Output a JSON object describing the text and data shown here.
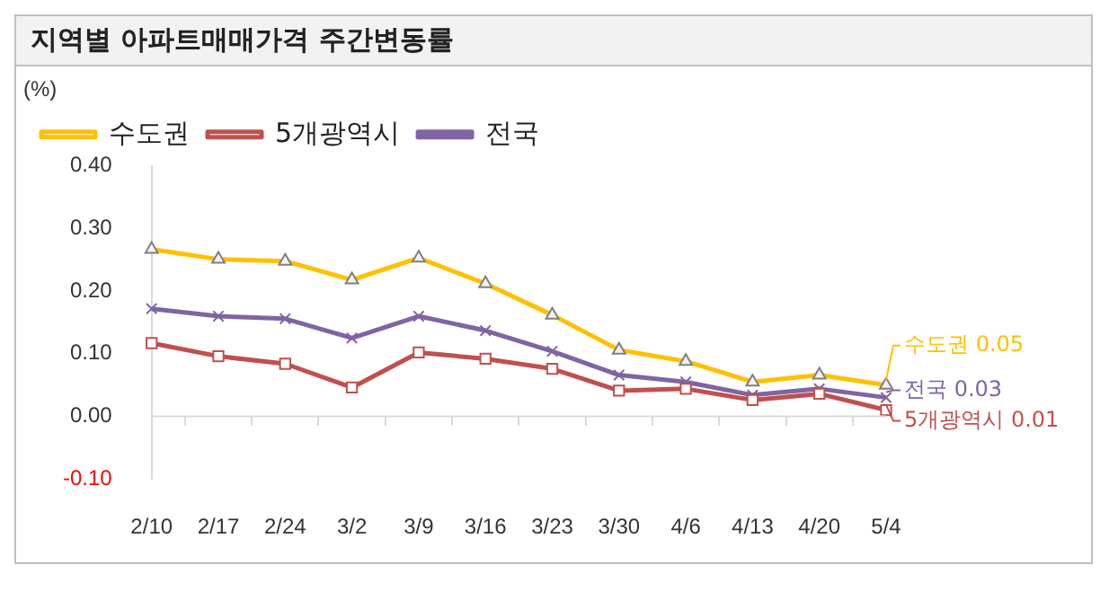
{
  "chart_data": {
    "type": "line",
    "title": "지역별 아파트매매가격 주간변동률",
    "ylabel": "(%)",
    "categories": [
      "2/10",
      "2/17",
      "2/24",
      "3/2",
      "3/9",
      "3/16",
      "3/23",
      "3/30",
      "4/6",
      "4/13",
      "4/20",
      "5/4"
    ],
    "series": [
      {
        "name": "수도권",
        "color": "#ffc000",
        "marker": "triangle",
        "values": [
          0.267,
          0.251,
          0.248,
          0.218,
          0.253,
          0.212,
          0.162,
          0.106,
          0.088,
          0.055,
          0.066,
          0.05
        ]
      },
      {
        "name": "5개광역시",
        "color": "#c0504d",
        "marker": "square",
        "values": [
          0.117,
          0.096,
          0.084,
          0.046,
          0.102,
          0.092,
          0.076,
          0.041,
          0.044,
          0.026,
          0.036,
          0.01
        ]
      },
      {
        "name": "전국",
        "color": "#8064a2",
        "marker": "cross",
        "values": [
          0.172,
          0.16,
          0.156,
          0.125,
          0.16,
          0.137,
          0.104,
          0.066,
          0.055,
          0.034,
          0.044,
          0.03
        ]
      }
    ],
    "ylim": [
      -0.1,
      0.4
    ],
    "yticks": [
      {
        "value": -0.1,
        "label": "-0.10"
      },
      {
        "value": 0,
        "label": "0.00"
      },
      {
        "value": 0.1,
        "label": "0.10"
      },
      {
        "value": 0.2,
        "label": "0.20"
      },
      {
        "value": 0.3,
        "label": "0.30"
      },
      {
        "value": 0.4,
        "label": "0.40"
      }
    ],
    "grid": false,
    "legend": "top",
    "ref_lines": [
      {
        "axis": "y",
        "value": 0,
        "color": "#d9d9d9"
      }
    ],
    "annotations": [
      {
        "text": "수도권 0.05",
        "x": "5/4",
        "y": 0.05
      },
      {
        "text": "5개광역시 0.01",
        "x": "5/4",
        "y": 0.01
      },
      {
        "text": "전국 0.03",
        "x": "5/4",
        "y": 0.03
      }
    ]
  }
}
